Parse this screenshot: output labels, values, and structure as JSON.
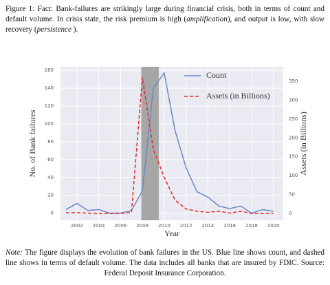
{
  "caption": [
    {
      "text": "Figure 1: Fact: Bank-failures are strikingly large during financial crisis, both in terms of count and default volume. In crisis state, the risk premium is high (",
      "italic": false
    },
    {
      "text": "amplification",
      "italic": true
    },
    {
      "text": "), and output is low, with slow recovery (",
      "italic": false
    },
    {
      "text": "persistence",
      "italic": true
    },
    {
      "text": " ).",
      "italic": false
    }
  ],
  "chart_data": {
    "type": "line",
    "xlabel": "Year",
    "ylabel": "No. of Bank failures",
    "y2label": "Assets (in Billions)",
    "x": [
      2001,
      2002,
      2003,
      2004,
      2005,
      2006,
      2007,
      2008,
      2009,
      2010,
      2011,
      2012,
      2013,
      2014,
      2015,
      2016,
      2017,
      2018,
      2019,
      2020
    ],
    "series": [
      {
        "name": "Count",
        "color": "#6a89c4",
        "dashed": false,
        "values": [
          4,
          11,
          3,
          4,
          0,
          0,
          3,
          25,
          140,
          157,
          92,
          51,
          24,
          18,
          8,
          5,
          8,
          0,
          4,
          2
        ]
      },
      {
        "name": "Assets (in Billions)",
        "color": "#e8242a",
        "dashed": true,
        "axis": "y2",
        "values": [
          2,
          2,
          1,
          0,
          0,
          0,
          3,
          360,
          170,
          95,
          35,
          12,
          6,
          3,
          6,
          1,
          6,
          0,
          0,
          0
        ]
      }
    ],
    "shaded_span": [
      2007.9,
      2009.5
    ],
    "xlim": [
      2000.5,
      2020.9
    ],
    "xticks": [
      2002,
      2004,
      2006,
      2008,
      2010,
      2012,
      2014,
      2016,
      2018,
      2020
    ],
    "ylim": [
      -8,
      164
    ],
    "yticks": [
      0,
      20,
      40,
      60,
      80,
      100,
      120,
      140,
      160
    ],
    "y2lim": [
      -18,
      388
    ],
    "y2ticks": [
      0,
      50,
      100,
      150,
      200,
      250,
      300,
      350
    ],
    "grid": true,
    "legend": "upper right"
  },
  "note": [
    {
      "text": "Note:",
      "italic": true
    },
    {
      "text": " The figure displays the evolution of bank failures in the US. Blue line shows count, and dashed line shows in terms of default volume. The data includes all banks that are insured by FDIC. Source: Federal Deposit Insurance Corporation.",
      "italic": false
    }
  ]
}
